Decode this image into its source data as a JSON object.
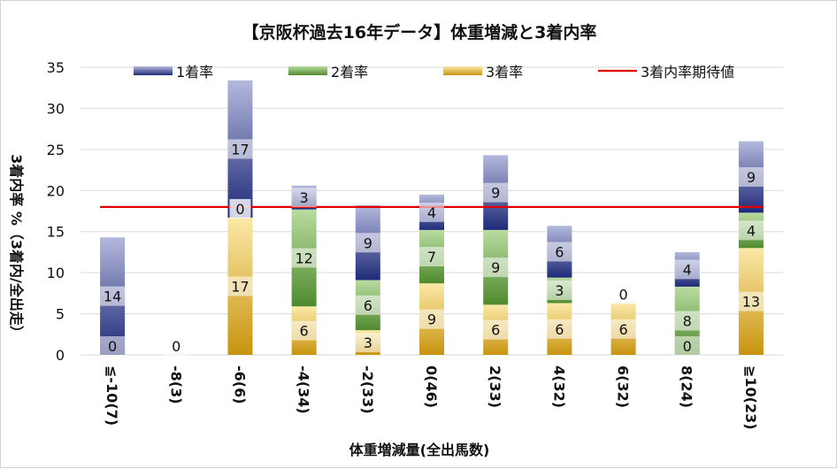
{
  "chart_data": {
    "type": "bar",
    "title": "【京阪杯過去16年データ】体重増減と3着内率",
    "xlabel": "体重増減量(全出馬数)",
    "ylabel": "3着内率 %（3着内/全出走）",
    "ylim": [
      0,
      35
    ],
    "yticks": [
      0,
      5,
      10,
      15,
      20,
      25,
      30,
      35
    ],
    "grid": true,
    "legend_position": "top",
    "categories": [
      "≦-10(7)",
      "-8(3)",
      "-6(6)",
      "-4(34)",
      "-2(33)",
      "0(46)",
      "2(33)",
      "4(32)",
      "6(32)",
      "8(24)",
      "≧10(23)"
    ],
    "series": [
      {
        "name": "3着率",
        "color": "#d9a72e",
        "values": [
          0,
          0,
          16.7,
          5.9,
          3.0,
          8.7,
          6.1,
          6.3,
          6.3,
          0,
          13.0
        ],
        "labels": [
          "",
          "",
          "17",
          "6",
          "3",
          "9",
          "6",
          "6",
          "6",
          "0",
          "13"
        ]
      },
      {
        "name": "2着率",
        "color": "#5c9a3f",
        "values": [
          0,
          0,
          0,
          11.8,
          6.1,
          6.5,
          9.1,
          3.1,
          0,
          8.3,
          4.3
        ],
        "labels": [
          "0",
          "",
          "",
          "12",
          "6",
          "7",
          "9",
          "3",
          "",
          "8",
          "4"
        ]
      },
      {
        "name": "1着率",
        "color": "#3e4a94",
        "values": [
          14.3,
          0,
          16.7,
          2.9,
          9.1,
          4.3,
          9.1,
          6.3,
          0,
          4.2,
          8.7
        ],
        "labels": [
          "14",
          "0",
          "17",
          "3",
          "9",
          "4",
          "9",
          "6",
          "0",
          "4",
          "9"
        ]
      }
    ],
    "first_label_mid_bar": [
      "",
      "",
      "0",
      "",
      "",
      "",
      "",
      "",
      "",
      "",
      ""
    ],
    "expected_line": {
      "name": "3着内率期待値",
      "value": 18.0,
      "color": "#e00000"
    },
    "legend_order": [
      "1着率",
      "2着率",
      "3着率",
      "3着内率期待値"
    ]
  }
}
